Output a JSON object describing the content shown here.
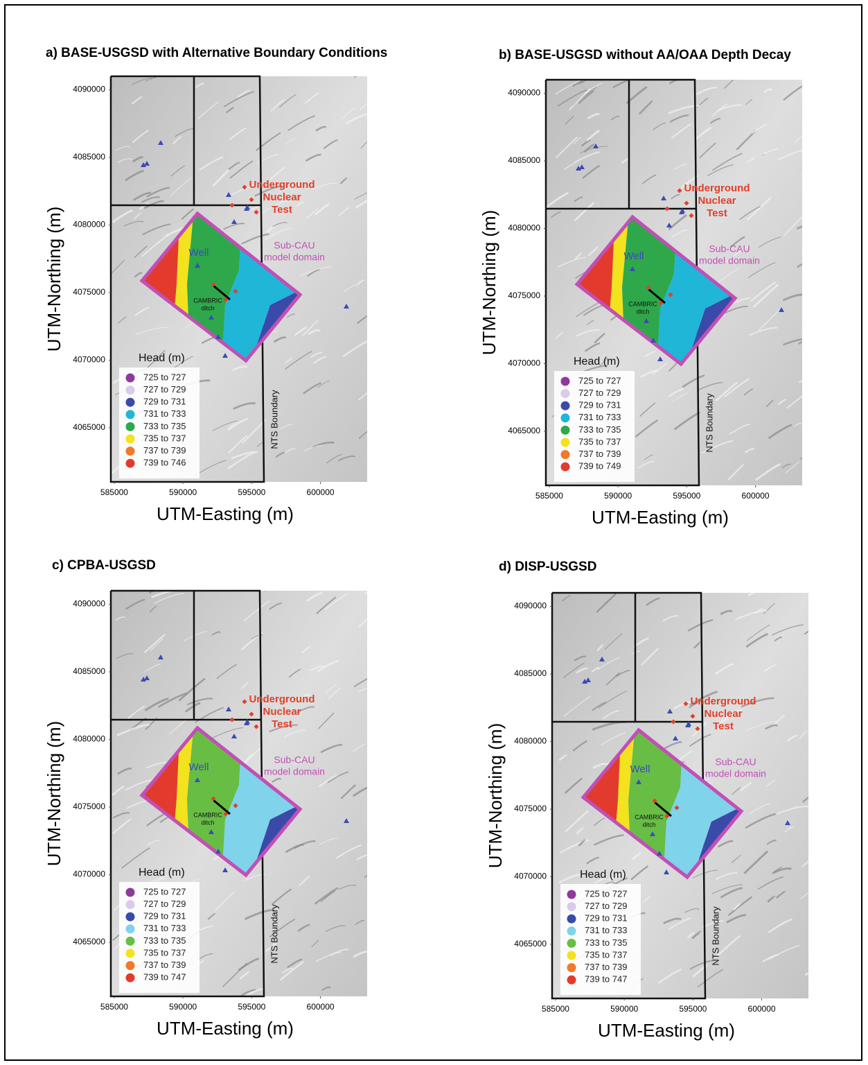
{
  "chart_data": [
    {
      "type": "map",
      "title": "a) BASE-USGSD with Alternative Boundary Conditions",
      "xlabel": "UTM-Easting (m)",
      "ylabel": "UTM-Northing (m)",
      "xlim": [
        584750,
        603400
      ],
      "ylim": [
        4061000,
        4091000
      ],
      "xticks": [
        585000,
        590000,
        595000,
        600000
      ],
      "yticks": [
        4065000,
        4070000,
        4075000,
        4080000,
        4085000,
        4090000
      ],
      "legend": {
        "title": "Head (m)",
        "items": [
          {
            "label": "725 to 727",
            "color": "#8e3a9d"
          },
          {
            "label": "727 to 729",
            "color": "#d9cbe9"
          },
          {
            "label": "729 to 731",
            "color": "#3a4aa8"
          },
          {
            "label": "731 to 733",
            "color": "#1fb6d8"
          },
          {
            "label": "733 to 735",
            "color": "#2ea84a"
          },
          {
            "label": "735 to 737",
            "color": "#f3e21e"
          },
          {
            "label": "737 to 739",
            "color": "#ef7a2a"
          },
          {
            "label": "739 to 746",
            "color": "#e23b2e"
          }
        ]
      },
      "annotations": {
        "test": [
          "Underground",
          "Nuclear",
          "Test"
        ],
        "domain": [
          "Sub-CAU",
          "model domain"
        ],
        "well": "Well",
        "ditch": [
          "CAMBRIC",
          "ditch"
        ],
        "boundary": "NTS Boundary"
      }
    },
    {
      "type": "map",
      "title": "b) BASE-USGSD without AA/OAA Depth Decay",
      "xlabel": "UTM-Easting (m)",
      "ylabel": "UTM-Northing (m)",
      "xlim": [
        584750,
        603400
      ],
      "ylim": [
        4061000,
        4091000
      ],
      "xticks": [
        585000,
        590000,
        595000,
        600000
      ],
      "yticks": [
        4065000,
        4070000,
        4075000,
        4080000,
        4085000,
        4090000
      ],
      "legend": {
        "title": "Head (m)",
        "items": [
          {
            "label": "725 to 727",
            "color": "#8e3a9d"
          },
          {
            "label": "727 to 729",
            "color": "#d9cbe9"
          },
          {
            "label": "729 to 731",
            "color": "#3a4aa8"
          },
          {
            "label": "731 to 733",
            "color": "#1fb6d8"
          },
          {
            "label": "733 to 735",
            "color": "#2ea84a"
          },
          {
            "label": "735 to 737",
            "color": "#f3e21e"
          },
          {
            "label": "737 to 739",
            "color": "#ef7a2a"
          },
          {
            "label": "739 to 749",
            "color": "#e23b2e"
          }
        ]
      },
      "annotations": {
        "test": [
          "Underground",
          "Nuclear",
          "Test"
        ],
        "domain": [
          "Sub-CAU",
          "model domain"
        ],
        "well": "Well",
        "ditch": [
          "CAMBRIC",
          "ditch"
        ],
        "boundary": "NTS Boundary"
      }
    },
    {
      "type": "map",
      "title": "c)  CPBA-USGSD",
      "xlabel": "UTM-Easting (m)",
      "ylabel": "UTM-Northing (m)",
      "xlim": [
        584750,
        603400
      ],
      "ylim": [
        4061000,
        4091000
      ],
      "xticks": [
        585000,
        590000,
        595000,
        600000
      ],
      "yticks": [
        4065000,
        4070000,
        4075000,
        4080000,
        4085000,
        4090000
      ],
      "legend": {
        "title": "Head (m)",
        "items": [
          {
            "label": "725 to 727",
            "color": "#8e3a9d"
          },
          {
            "label": "727 to 729",
            "color": "#d9cbe9"
          },
          {
            "label": "729 to 731",
            "color": "#3a4aa8"
          },
          {
            "label": "731 to 733",
            "color": "#7fd3ea"
          },
          {
            "label": "733 to 735",
            "color": "#68bd45"
          },
          {
            "label": "735 to 737",
            "color": "#f3e21e"
          },
          {
            "label": "737 to 739",
            "color": "#ef7a2a"
          },
          {
            "label": "739 to 747",
            "color": "#e23b2e"
          }
        ]
      },
      "annotations": {
        "test": [
          "Underground",
          "Nuclear",
          "Test"
        ],
        "domain": [
          "Sub-CAU",
          "model domain"
        ],
        "well": "Well",
        "ditch": [
          "CAMBRIC",
          "ditch"
        ],
        "boundary": "NTS Boundary"
      }
    },
    {
      "type": "map",
      "title": "d) DISP-USGSD",
      "xlabel": "UTM-Easting (m)",
      "ylabel": "UTM-Northing (m)",
      "xlim": [
        584750,
        603400
      ],
      "ylim": [
        4061000,
        4091000
      ],
      "xticks": [
        585000,
        590000,
        595000,
        600000
      ],
      "yticks": [
        4065000,
        4070000,
        4075000,
        4080000,
        4085000,
        4090000
      ],
      "legend": {
        "title": "Head (m)",
        "items": [
          {
            "label": "725 to 727",
            "color": "#8e3a9d"
          },
          {
            "label": "727 to 729",
            "color": "#d9cbe9"
          },
          {
            "label": "729 to 731",
            "color": "#3a4aa8"
          },
          {
            "label": "731 to 733",
            "color": "#7fd3ea"
          },
          {
            "label": "733 to 735",
            "color": "#68bd45"
          },
          {
            "label": "735 to 737",
            "color": "#f3e21e"
          },
          {
            "label": "737 to 739",
            "color": "#ef7a2a"
          },
          {
            "label": "739 to 747",
            "color": "#e23b2e"
          }
        ]
      },
      "annotations": {
        "test": [
          "Underground",
          "Nuclear",
          "Test"
        ],
        "domain": [
          "Sub-CAU",
          "model domain"
        ],
        "well": "Well",
        "ditch": [
          "CAMBRIC",
          "ditch"
        ],
        "boundary": "NTS Boundary"
      }
    }
  ]
}
